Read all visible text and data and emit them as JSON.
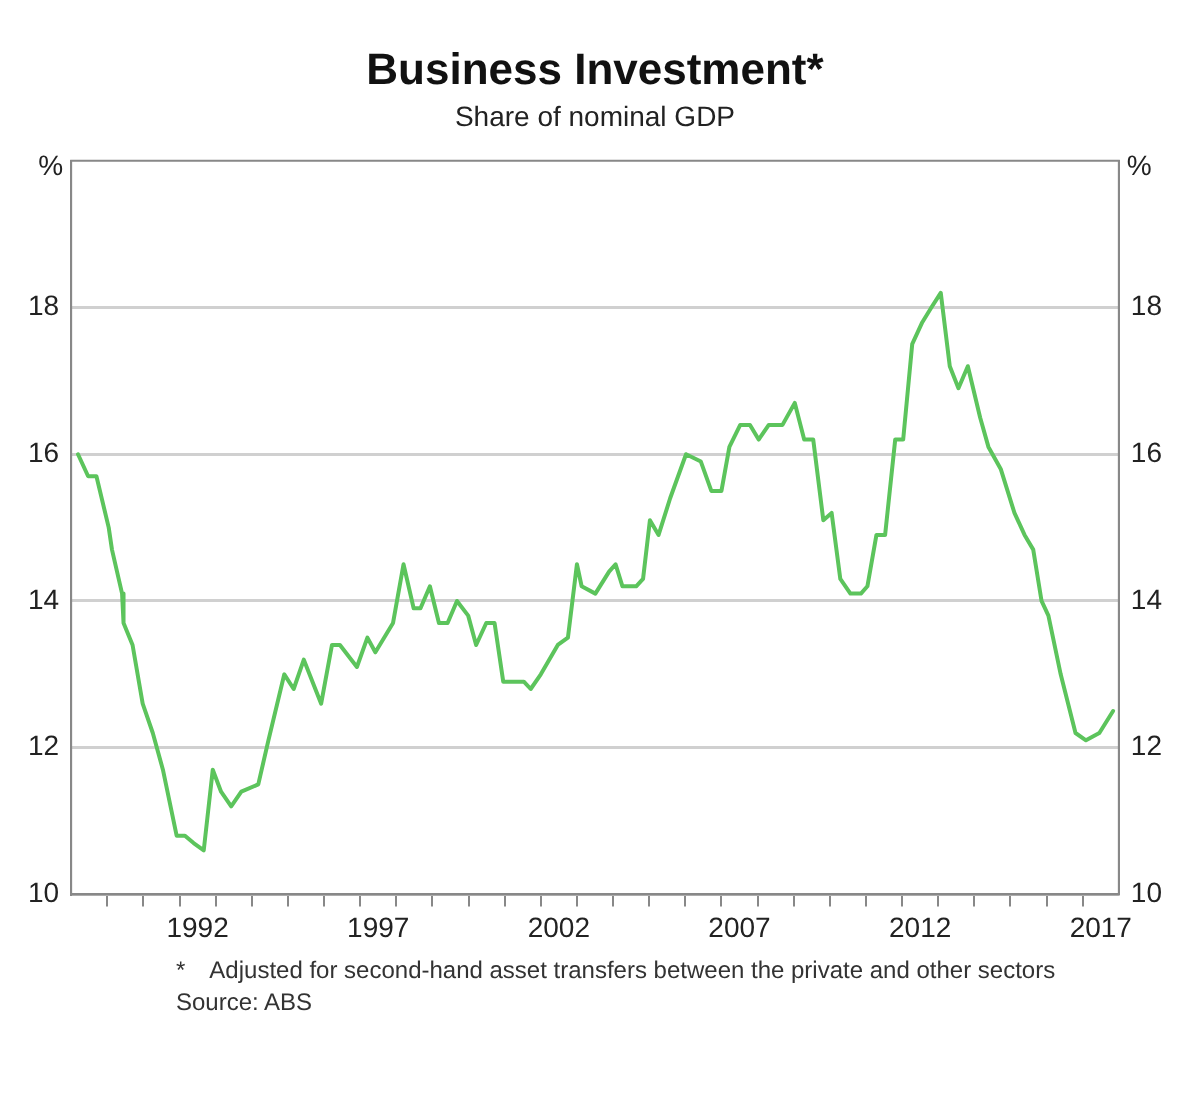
{
  "chart_data": {
    "type": "line",
    "title": "Business Investment*",
    "subtitle": "Share of nominal GDP",
    "ylabel": "%",
    "y2label": "%",
    "xlim": [
      1989,
      2018
    ],
    "xticks": [
      {
        "value": 1990,
        "label": null
      },
      {
        "value": 1991,
        "label": null
      },
      {
        "value": 1992,
        "label": null
      },
      {
        "value": 1992.5,
        "label": "1992"
      },
      {
        "value": 1993,
        "label": null
      },
      {
        "value": 1994,
        "label": null
      },
      {
        "value": 1995,
        "label": null
      },
      {
        "value": 1996,
        "label": null
      },
      {
        "value": 1997,
        "label": null
      },
      {
        "value": 1997.5,
        "label": "1997"
      },
      {
        "value": 1998,
        "label": null
      },
      {
        "value": 1999,
        "label": null
      },
      {
        "value": 2000,
        "label": null
      },
      {
        "value": 2001,
        "label": null
      },
      {
        "value": 2002,
        "label": null
      },
      {
        "value": 2002.5,
        "label": "2002"
      },
      {
        "value": 2003,
        "label": null
      },
      {
        "value": 2004,
        "label": null
      },
      {
        "value": 2005,
        "label": null
      },
      {
        "value": 2006,
        "label": null
      },
      {
        "value": 2007,
        "label": null
      },
      {
        "value": 2007.5,
        "label": "2007"
      },
      {
        "value": 2008,
        "label": null
      },
      {
        "value": 2009,
        "label": null
      },
      {
        "value": 2010,
        "label": null
      },
      {
        "value": 2011,
        "label": null
      },
      {
        "value": 2012,
        "label": null
      },
      {
        "value": 2012.5,
        "label": "2012"
      },
      {
        "value": 2013,
        "label": null
      },
      {
        "value": 2014,
        "label": null
      },
      {
        "value": 2015,
        "label": null
      },
      {
        "value": 2016,
        "label": null
      },
      {
        "value": 2017,
        "label": null
      },
      {
        "value": 2017.5,
        "label": "2017"
      }
    ],
    "ylim": [
      10,
      20
    ],
    "yticks": [
      10,
      12,
      14,
      16,
      18
    ],
    "y2lim": [
      10,
      20
    ],
    "y2ticks": [
      10,
      12,
      14,
      16,
      18
    ],
    "grid": "y",
    "legend": false,
    "line_style": "solid",
    "series": [
      {
        "color": "#5cc45c",
        "x": [
          1989.19,
          1989.47,
          1989.7,
          1990.04,
          1990.13,
          1990.41,
          1990.45,
          1990.7,
          1990.98,
          1991.26,
          1991.54,
          1991.92,
          1992.15,
          1992.39,
          1992.67,
          1992.92,
          1993.15,
          1993.43,
          1993.71,
          1994.18,
          1994.46,
          1994.9,
          1995.16,
          1995.44,
          1995.92,
          1996.22,
          1996.44,
          1996.91,
          1997.2,
          1997.42,
          1997.91,
          1998.2,
          1998.48,
          1998.67,
          1998.93,
          1999.18,
          1999.42,
          1999.68,
          1999.99,
          2000.21,
          2000.49,
          2000.72,
          2000.96,
          2001.34,
          2001.53,
          2001.72,
          2002.0,
          2002.47,
          2002.75,
          2003.0,
          2003.13,
          2003.51,
          2003.89,
          2004.07,
          2004.26,
          2004.64,
          2004.83,
          2005.02,
          2005.26,
          2005.58,
          2006.02,
          2006.43,
          2006.72,
          2007.0,
          2007.22,
          2007.52,
          2007.79,
          2008.03,
          2008.31,
          2008.69,
          2009.03,
          2009.29,
          2009.54,
          2009.82,
          2010.05,
          2010.29,
          2010.57,
          2010.86,
          2011.04,
          2011.29,
          2011.53,
          2011.81,
          2012.03,
          2012.28,
          2012.56,
          2012.81,
          2013.07,
          2013.32,
          2013.56,
          2013.82,
          2014.16,
          2014.39,
          2014.73,
          2015.11,
          2015.39,
          2015.63,
          2015.86,
          2016.05,
          2016.39,
          2016.8,
          2017.09,
          2017.46,
          2017.84
        ],
        "values": [
          16.0,
          15.7,
          15.7,
          15.0,
          14.7,
          14.1,
          13.7,
          13.4,
          12.6,
          12.2,
          11.7,
          10.8,
          10.8,
          10.7,
          10.6,
          11.7,
          11.4,
          11.2,
          11.4,
          11.5,
          12.1,
          13.0,
          12.8,
          13.2,
          12.6,
          13.4,
          13.4,
          13.1,
          13.5,
          13.3,
          13.7,
          14.5,
          13.9,
          13.9,
          14.2,
          13.7,
          13.7,
          14.0,
          13.8,
          13.4,
          13.7,
          13.7,
          12.9,
          12.9,
          12.9,
          12.8,
          13.0,
          13.4,
          13.5,
          14.5,
          14.2,
          14.1,
          14.4,
          14.5,
          14.2,
          14.2,
          14.3,
          15.1,
          14.9,
          15.4,
          16.0,
          15.9,
          15.5,
          15.5,
          16.1,
          16.4,
          16.4,
          16.2,
          16.4,
          16.4,
          16.7,
          16.2,
          16.2,
          15.1,
          15.2,
          14.3,
          14.1,
          14.1,
          14.2,
          14.9,
          14.9,
          16.2,
          16.2,
          17.5,
          17.8,
          18.0,
          18.2,
          17.2,
          16.9,
          17.2,
          16.5,
          16.1,
          15.8,
          15.2,
          14.9,
          14.7,
          14.0,
          13.8,
          13.0,
          12.2,
          12.1,
          12.2,
          12.5
        ]
      }
    ],
    "annotations": [
      "* Adjusted for second-hand asset transfers between the private and other sectors",
      "Source: ABS"
    ]
  }
}
